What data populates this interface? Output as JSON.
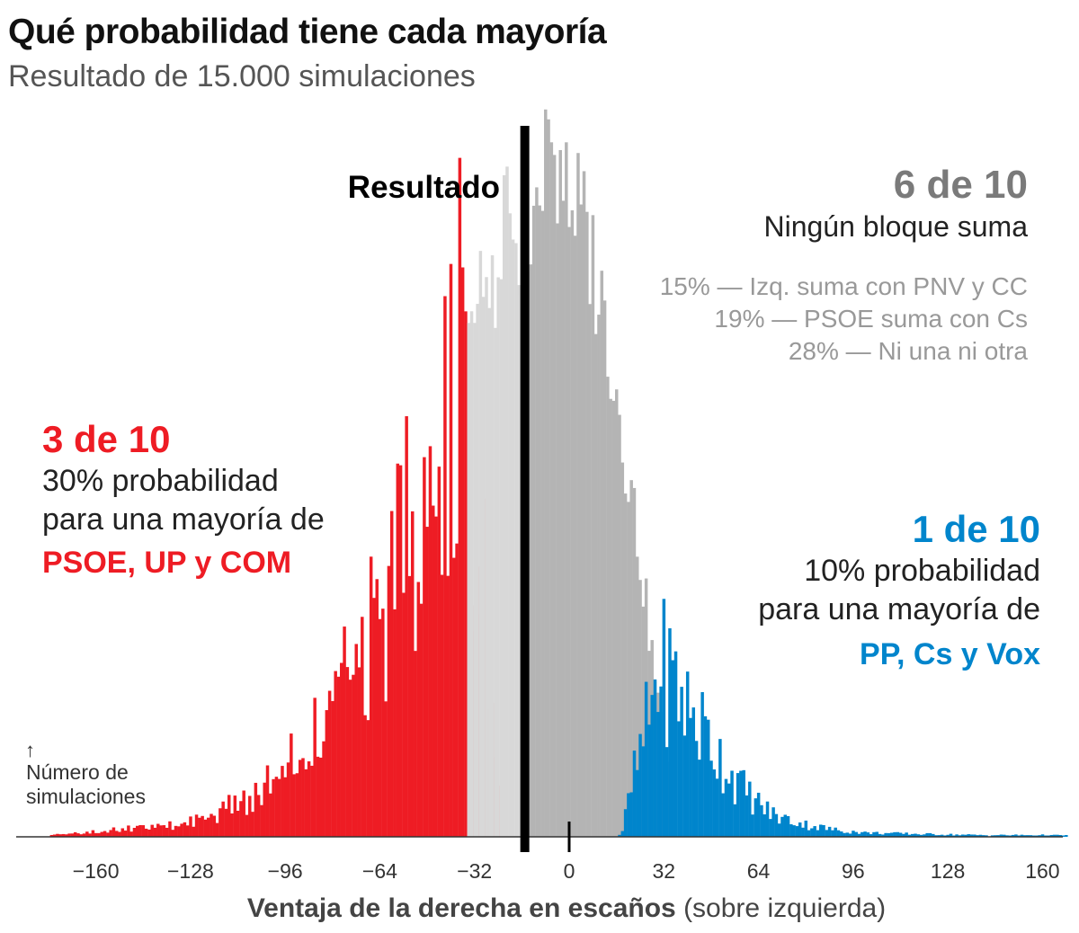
{
  "chart_data": {
    "type": "bar",
    "title": "Qué probabilidad tiene cada mayoría",
    "subtitle": "Resultado de 15.000 simulaciones",
    "xlabel_bold": "Ventaja de la derecha en escaños",
    "xlabel_rest": " (sobre izquierda)",
    "ylabel_arrow": "↑",
    "ylabel_lines": [
      "Número de",
      "simulaciones"
    ],
    "xticks": [
      -160,
      -128,
      -96,
      -64,
      -32,
      0,
      32,
      64,
      96,
      128,
      160
    ],
    "xtick_labels": [
      "−160",
      "−128",
      "−96",
      "−64",
      "−32",
      "0",
      "32",
      "64",
      "96",
      "128",
      "160"
    ],
    "xlim": [
      -176,
      168
    ],
    "ylim": [
      0,
      100
    ],
    "result_marker": {
      "x": -15,
      "label": "Resultado"
    },
    "zero_marker": {
      "x": 0
    },
    "colors": {
      "left_majority": "#ee1c24",
      "right_majority": "#0085cc",
      "no_bloc_light": "#d8d8d8",
      "no_bloc_dark": "#b4b4b4",
      "result_line": "#000000",
      "axis": "#333333"
    },
    "series": [
      {
        "name": "Mayoría PSOE, UP y COM",
        "color": "#ee1c24",
        "keypoints": [
          [
            -175,
            0.3
          ],
          [
            -160,
            0.7
          ],
          [
            -150,
            1.3
          ],
          [
            -140,
            1.3
          ],
          [
            -130,
            2.0
          ],
          [
            -120,
            3.4
          ],
          [
            -110,
            5.5
          ],
          [
            -100,
            8.0
          ],
          [
            -90,
            12.5
          ],
          [
            -80,
            18.5
          ],
          [
            -70,
            26.5
          ],
          [
            -60,
            37.5
          ],
          [
            -50,
            48.5
          ],
          [
            -44,
            56.0
          ],
          [
            -40,
            62.0
          ],
          [
            -38,
            68.5
          ],
          [
            -36,
            72.0
          ],
          [
            -34,
            64.0
          ],
          [
            -32,
            55.0
          ],
          [
            -30,
            50.0
          ],
          [
            -28,
            38.0
          ],
          [
            -26,
            21.0
          ],
          [
            -25,
            12.0
          ],
          [
            -24,
            7.0
          ],
          [
            -23,
            1.5
          ]
        ]
      },
      {
        "name": "Ningún bloque suma — Izq. suma con PNV y CC",
        "color": "#d8d8d8",
        "keypoints": [
          [
            -34,
            68
          ],
          [
            -32,
            76
          ],
          [
            -30,
            79
          ],
          [
            -28,
            82
          ],
          [
            -26,
            84
          ],
          [
            -24,
            86
          ],
          [
            -22,
            88
          ],
          [
            -20,
            89
          ],
          [
            -18,
            89
          ],
          [
            -16,
            89
          ]
        ]
      },
      {
        "name": "Ningún bloque suma — PSOE suma con Cs / Ni una ni otra",
        "color": "#b4b4b4",
        "keypoints": [
          [
            -14,
            90
          ],
          [
            -10,
            96
          ],
          [
            -6,
            100
          ],
          [
            -2,
            97
          ],
          [
            2,
            93
          ],
          [
            6,
            88
          ],
          [
            10,
            81
          ],
          [
            14,
            72
          ],
          [
            18,
            60
          ],
          [
            22,
            48
          ],
          [
            26,
            34
          ],
          [
            30,
            20
          ],
          [
            32,
            14
          ],
          [
            34,
            10
          ]
        ]
      },
      {
        "name": "Mayoría PP, Cs y Vox",
        "color": "#0085cc",
        "keypoints": [
          [
            17,
            0.3
          ],
          [
            18,
            1.0
          ],
          [
            19,
            3.0
          ],
          [
            20,
            5.0
          ],
          [
            22,
            9.0
          ],
          [
            24,
            12.0
          ],
          [
            26,
            16.0
          ],
          [
            28,
            20.0
          ],
          [
            30,
            24.0
          ],
          [
            32,
            24.5
          ],
          [
            36,
            22.5
          ],
          [
            40,
            19.0
          ],
          [
            44,
            16.5
          ],
          [
            48,
            14.0
          ],
          [
            52,
            11.0
          ],
          [
            56,
            8.5
          ],
          [
            60,
            6.5
          ],
          [
            65,
            4.5
          ],
          [
            70,
            3.0
          ],
          [
            80,
            1.8
          ],
          [
            90,
            1.0
          ],
          [
            100,
            0.6
          ],
          [
            120,
            0.4
          ],
          [
            140,
            0.25
          ],
          [
            160,
            0.25
          ],
          [
            168,
            0.2
          ]
        ]
      }
    ],
    "annotations": {
      "none": {
        "headline": "6 de 10",
        "subhead": "Ningún bloque suma",
        "details": [
          "15% — Izq. suma con PNV y CC",
          "19% — PSOE suma con Cs",
          "28% — Ni una ni otra"
        ]
      },
      "left": {
        "headline": "3 de 10",
        "lines": [
          "30% probabilidad",
          "para una mayoría de"
        ],
        "parties": "PSOE, UP y COM"
      },
      "right": {
        "headline": "1 de 10",
        "lines": [
          "10% probabilidad",
          "para una mayoría de"
        ],
        "parties": "PP, Cs y Vox"
      }
    }
  }
}
